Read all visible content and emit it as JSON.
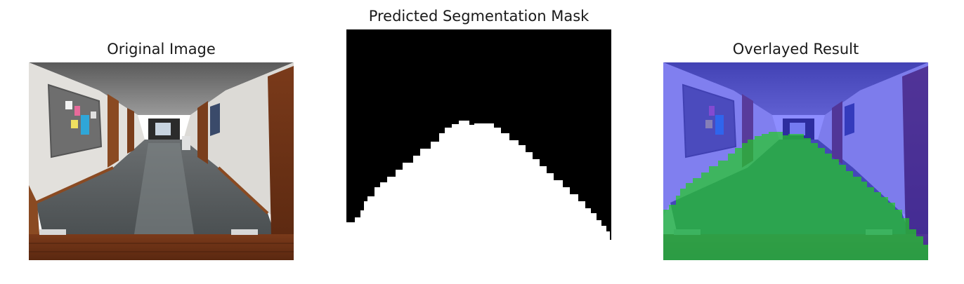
{
  "panels": [
    {
      "title": "Original Image"
    },
    {
      "title": "Predicted Segmentation Mask"
    },
    {
      "title": "Overlayed Result"
    }
  ],
  "overlay_colors": {
    "background_class": "#3030ff",
    "floor_class": "#22cc22"
  }
}
